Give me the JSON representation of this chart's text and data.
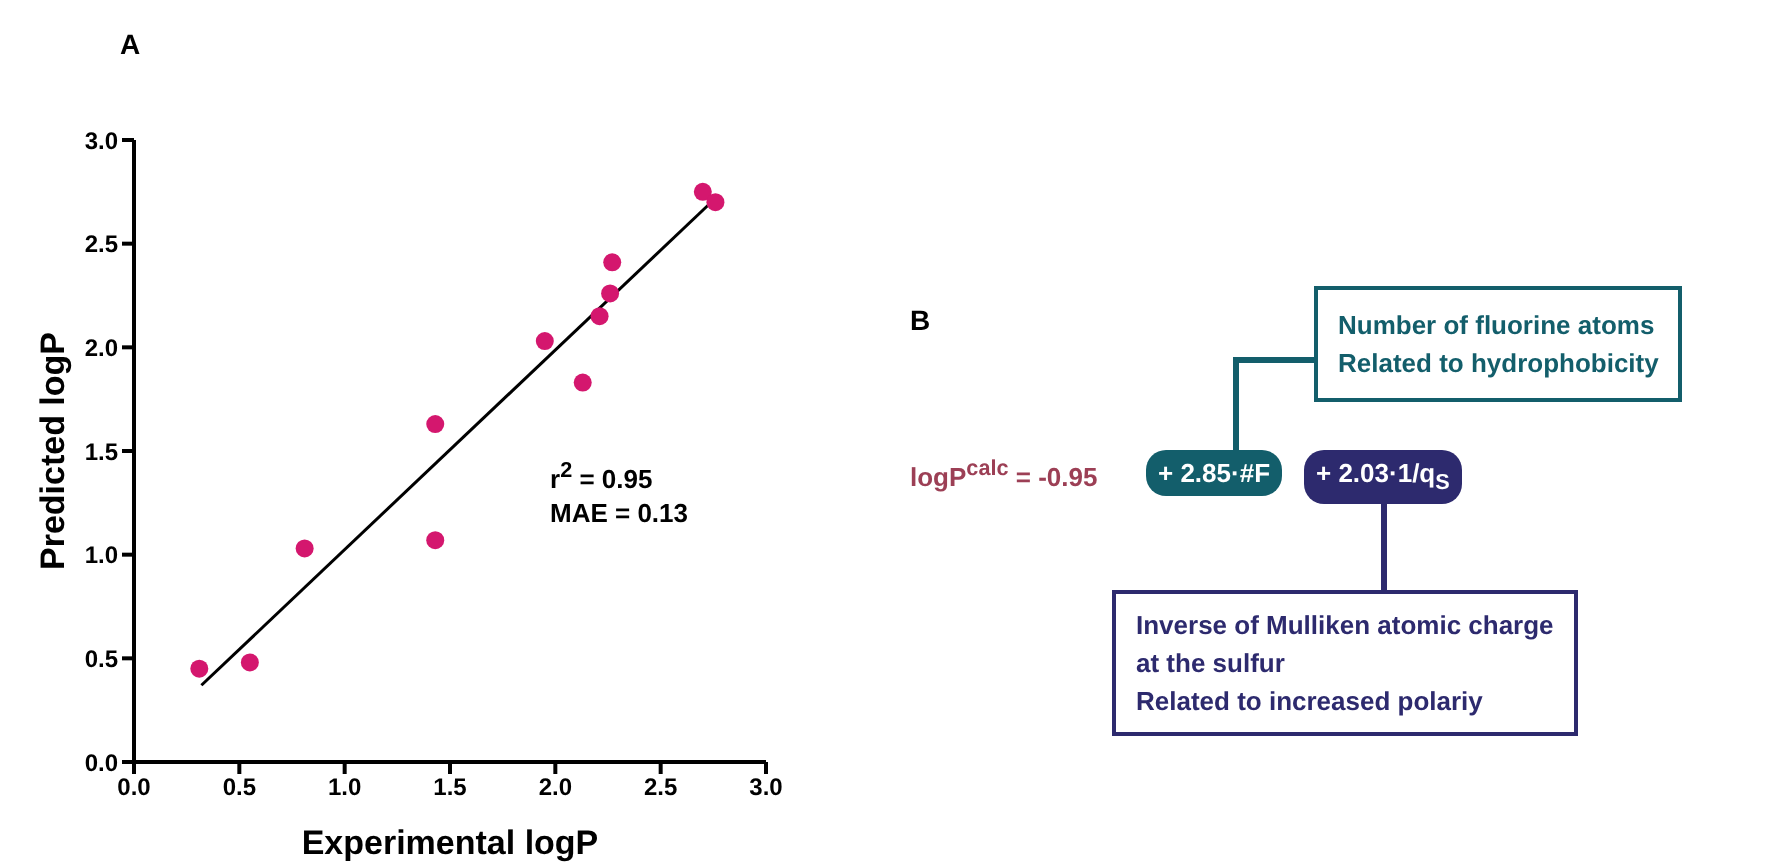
{
  "chart_data": [
    {
      "type": "scatter",
      "title": "A",
      "xlabel": "Experimental logP",
      "ylabel": "Predicted logP",
      "xlim": [
        0,
        3
      ],
      "ylim": [
        0,
        3
      ],
      "xticks": [
        {
          "value": 0,
          "label": "0.0"
        },
        0.5,
        {
          "value": 1,
          "label": "1.0"
        },
        1.5,
        {
          "value": 2,
          "label": "2.0"
        },
        2.5,
        {
          "value": 3,
          "label": "3.0"
        }
      ],
      "yticks": [
        {
          "value": 0,
          "label": "0.0"
        },
        0.5,
        {
          "value": 1,
          "label": "1.0"
        },
        1.5,
        {
          "value": 2,
          "label": "2.0"
        },
        2.5,
        {
          "value": 3,
          "label": "3.0"
        }
      ],
      "series": [
        {
          "type": "scatter",
          "color": "#d4176e",
          "marker": "circle",
          "x": [
            0.31,
            0.55,
            0.81,
            1.43,
            1.43,
            1.95,
            2.13,
            2.21,
            2.26,
            2.27,
            2.7,
            2.76
          ],
          "values": [
            0.45,
            0.48,
            1.03,
            1.63,
            1.07,
            2.03,
            1.83,
            2.15,
            2.26,
            2.41,
            2.75,
            2.7
          ]
        },
        {
          "type": "line",
          "color": "#000000",
          "marker": "none",
          "line_style": "solid",
          "x": [
            0.32,
            2.73
          ],
          "values": [
            0.37,
            2.69
          ]
        }
      ],
      "annotations": [
        "r$^{2}$ = 0.95",
        "MAE = 0.13"
      ]
    },
    {
      "type": "other",
      "title": "B",
      "colors": [
        "#9c3f55",
        "#135e6b",
        "#2d2a6e"
      ],
      "annotations": [
        "logP$^{calc}$ = -0.95",
        "+ 2.85·#F",
        "+ 2.03·1/q$_{S}$",
        "Number of fluorine atoms\nRelated to hydrophobicity",
        "Inverse of Mulliken atomic charge\nat the sulfur\nRelated to increased polariy"
      ]
    }
  ]
}
